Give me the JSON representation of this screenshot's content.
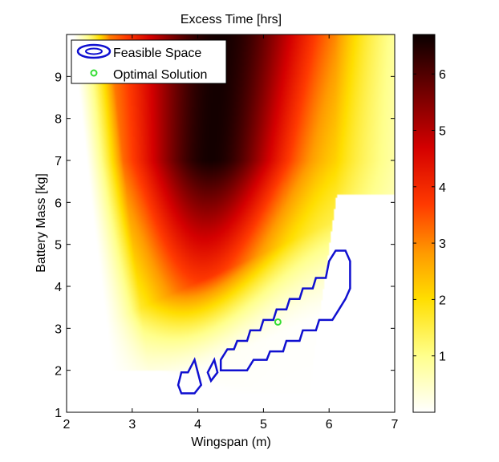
{
  "chart_data": {
    "type": "heatmap",
    "title": "Excess Time [hrs]",
    "xlabel": "Wingspan (m)",
    "ylabel": "Battery Mass [kg]",
    "xlim": [
      2,
      7
    ],
    "ylim": [
      1,
      10
    ],
    "xticks": [
      "2",
      "3",
      "4",
      "5",
      "6",
      "7"
    ],
    "yticks": [
      "1",
      "2",
      "3",
      "4",
      "5",
      "6",
      "7",
      "8",
      "9"
    ],
    "colorbar": {
      "colormap": "hot (reversed)",
      "range": [
        0,
        6.7
      ],
      "ticks": [
        "1",
        "2",
        "3",
        "4",
        "5",
        "6"
      ]
    },
    "legend": {
      "position": "top-left",
      "entries": [
        {
          "label": "Feasible Space",
          "marker": "contour",
          "color": "#1010d0"
        },
        {
          "label": "Optimal Solution",
          "marker": "circle",
          "color": "#33dd33"
        }
      ]
    },
    "series": [
      {
        "name": "Feasible Space",
        "type": "contour",
        "color": "#1010d0",
        "regions": [
          [
            [
              3.7,
              1.65
            ],
            [
              3.75,
              1.45
            ],
            [
              3.95,
              1.45
            ],
            [
              4.05,
              1.65
            ],
            [
              4.0,
              1.95
            ],
            [
              3.95,
              2.25
            ],
            [
              3.85,
              1.95
            ],
            [
              3.75,
              1.95
            ]
          ],
          [
            [
              4.15,
              1.95
            ],
            [
              4.25,
              2.25
            ],
            [
              4.3,
              1.95
            ],
            [
              4.2,
              1.75
            ]
          ],
          [
            [
              4.35,
              2.0
            ],
            [
              4.35,
              2.25
            ],
            [
              4.45,
              2.5
            ],
            [
              4.55,
              2.5
            ],
            [
              4.6,
              2.7
            ],
            [
              4.75,
              2.7
            ],
            [
              4.8,
              2.95
            ],
            [
              4.95,
              2.95
            ],
            [
              5.0,
              3.2
            ],
            [
              5.15,
              3.2
            ],
            [
              5.2,
              3.45
            ],
            [
              5.35,
              3.45
            ],
            [
              5.4,
              3.7
            ],
            [
              5.55,
              3.7
            ],
            [
              5.6,
              3.95
            ],
            [
              5.75,
              3.95
            ],
            [
              5.8,
              4.2
            ],
            [
              5.95,
              4.2
            ],
            [
              6.0,
              4.6
            ],
            [
              6.1,
              4.85
            ],
            [
              6.25,
              4.85
            ],
            [
              6.32,
              4.6
            ],
            [
              6.32,
              3.95
            ],
            [
              6.25,
              3.7
            ],
            [
              6.15,
              3.45
            ],
            [
              6.05,
              3.2
            ],
            [
              5.85,
              3.2
            ],
            [
              5.8,
              2.95
            ],
            [
              5.6,
              2.95
            ],
            [
              5.55,
              2.7
            ],
            [
              5.35,
              2.7
            ],
            [
              5.3,
              2.45
            ],
            [
              5.1,
              2.45
            ],
            [
              5.05,
              2.25
            ],
            [
              4.85,
              2.25
            ],
            [
              4.75,
              2.0
            ]
          ]
        ]
      },
      {
        "name": "Optimal Solution",
        "type": "scatter",
        "color": "#33dd33",
        "points": [
          [
            5.22,
            3.15
          ]
        ]
      }
    ]
  }
}
